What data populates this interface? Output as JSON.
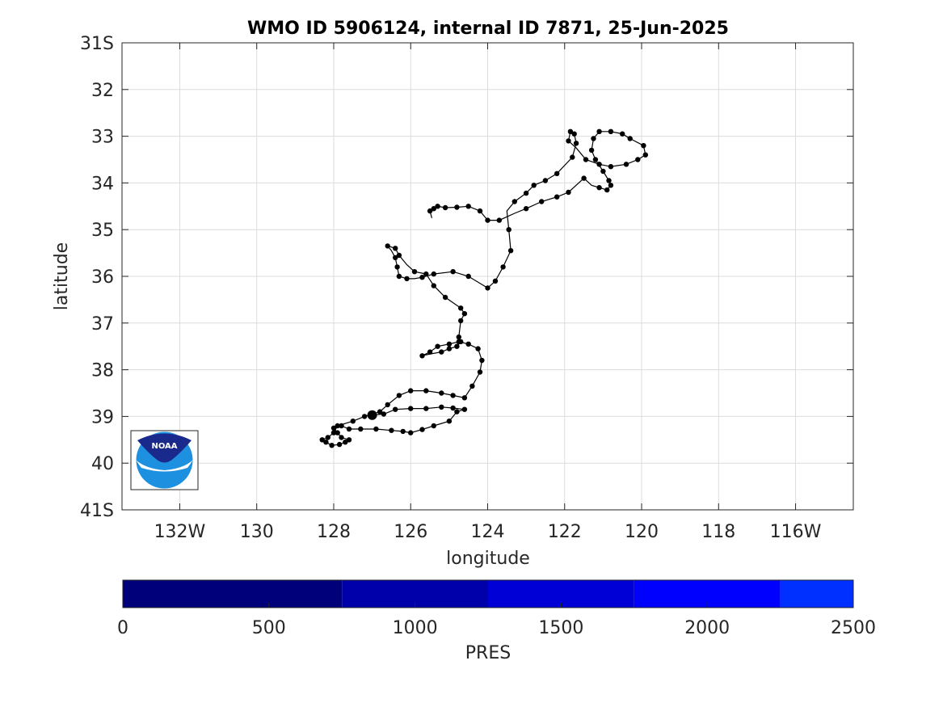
{
  "chart_data": {
    "type": "scatter",
    "title": "WMO ID 5906124, internal ID 7871, 25-Jun-2025",
    "xlabel": "longitude",
    "ylabel": "latitude",
    "xlim": [
      -133.5,
      -114.5
    ],
    "ylim": [
      31,
      41
    ],
    "x_ticks": [
      {
        "value": -132,
        "label": "132W"
      },
      {
        "value": -130,
        "label": "130"
      },
      {
        "value": -128,
        "label": "128"
      },
      {
        "value": -126,
        "label": "126"
      },
      {
        "value": -124,
        "label": "124"
      },
      {
        "value": -122,
        "label": "122"
      },
      {
        "value": -120,
        "label": "120"
      },
      {
        "value": -118,
        "label": "118"
      },
      {
        "value": -116,
        "label": "116W"
      }
    ],
    "y_ticks": [
      {
        "value": 31,
        "label": "31S"
      },
      {
        "value": 32,
        "label": "32"
      },
      {
        "value": 33,
        "label": "33"
      },
      {
        "value": 34,
        "label": "34"
      },
      {
        "value": 35,
        "label": "35"
      },
      {
        "value": 36,
        "label": "36"
      },
      {
        "value": 37,
        "label": "37"
      },
      {
        "value": 38,
        "label": "38"
      },
      {
        "value": 39,
        "label": "39"
      },
      {
        "value": 40,
        "label": "40"
      },
      {
        "value": 41,
        "label": "41S"
      }
    ],
    "grid": true,
    "track": [
      [
        -127.0,
        38.97
      ],
      [
        -126.7,
        38.95
      ],
      [
        -126.4,
        38.85
      ],
      [
        -126.0,
        38.83
      ],
      [
        -125.6,
        38.83
      ],
      [
        -125.2,
        38.8
      ],
      [
        -124.9,
        38.82
      ],
      [
        -124.6,
        38.85
      ],
      [
        -124.8,
        38.9
      ],
      [
        -125.0,
        39.1
      ],
      [
        -125.4,
        39.2
      ],
      [
        -125.7,
        39.28
      ],
      [
        -126.0,
        39.35
      ],
      [
        -126.2,
        39.32
      ],
      [
        -126.5,
        39.3
      ],
      [
        -126.9,
        39.27
      ],
      [
        -127.3,
        39.27
      ],
      [
        -127.6,
        39.27
      ],
      [
        -127.8,
        39.2
      ],
      [
        -128.0,
        39.25
      ],
      [
        -127.9,
        39.35
      ],
      [
        -127.8,
        39.45
      ],
      [
        -127.6,
        39.5
      ],
      [
        -127.7,
        39.55
      ],
      [
        -127.85,
        39.6
      ],
      [
        -128.05,
        39.62
      ],
      [
        -128.2,
        39.55
      ],
      [
        -128.3,
        39.5
      ],
      [
        -128.15,
        39.45
      ],
      [
        -128.0,
        39.35
      ],
      [
        -127.9,
        39.2
      ],
      [
        -127.5,
        39.1
      ],
      [
        -127.2,
        39.0
      ],
      [
        -126.8,
        38.9
      ],
      [
        -126.6,
        38.75
      ],
      [
        -126.3,
        38.55
      ],
      [
        -126.0,
        38.45
      ],
      [
        -125.6,
        38.45
      ],
      [
        -125.2,
        38.5
      ],
      [
        -124.9,
        38.55
      ],
      [
        -124.6,
        38.6
      ],
      [
        -124.4,
        38.35
      ],
      [
        -124.2,
        38.05
      ],
      [
        -124.15,
        37.8
      ],
      [
        -124.25,
        37.55
      ],
      [
        -124.5,
        37.45
      ],
      [
        -124.75,
        37.4
      ],
      [
        -125.0,
        37.45
      ],
      [
        -125.3,
        37.5
      ],
      [
        -125.5,
        37.62
      ],
      [
        -125.7,
        37.7
      ],
      [
        -125.6,
        37.68
      ],
      [
        -125.2,
        37.62
      ],
      [
        -125.0,
        37.55
      ],
      [
        -124.8,
        37.5
      ],
      [
        -124.7,
        37.4
      ],
      [
        -124.75,
        37.3
      ],
      [
        -124.7,
        36.95
      ],
      [
        -124.6,
        36.8
      ],
      [
        -124.7,
        36.68
      ],
      [
        -125.1,
        36.45
      ],
      [
        -125.4,
        36.2
      ],
      [
        -125.6,
        35.95
      ],
      [
        -125.9,
        35.9
      ],
      [
        -126.1,
        35.75
      ],
      [
        -126.3,
        35.55
      ],
      [
        -126.4,
        35.4
      ],
      [
        -126.6,
        35.35
      ],
      [
        -126.5,
        35.45
      ],
      [
        -126.4,
        35.6
      ],
      [
        -126.35,
        35.8
      ],
      [
        -126.3,
        36.0
      ],
      [
        -126.1,
        36.05
      ],
      [
        -125.9,
        36.05
      ],
      [
        -125.7,
        36.02
      ],
      [
        -125.4,
        35.95
      ],
      [
        -124.9,
        35.9
      ],
      [
        -124.5,
        36.0
      ],
      [
        -124.0,
        36.25
      ],
      [
        -123.8,
        36.1
      ],
      [
        -123.6,
        35.8
      ],
      [
        -123.4,
        35.45
      ],
      [
        -123.45,
        35.0
      ],
      [
        -123.5,
        34.6
      ],
      [
        -123.3,
        34.4
      ],
      [
        -123.0,
        34.22
      ],
      [
        -122.8,
        34.05
      ],
      [
        -122.5,
        33.95
      ],
      [
        -122.2,
        33.8
      ],
      [
        -121.8,
        33.45
      ],
      [
        -121.7,
        33.15
      ],
      [
        -121.75,
        32.95
      ],
      [
        -121.85,
        32.9
      ],
      [
        -121.9,
        33.1
      ],
      [
        -121.7,
        33.25
      ],
      [
        -121.45,
        33.5
      ],
      [
        -121.1,
        33.6
      ],
      [
        -120.8,
        33.65
      ],
      [
        -120.4,
        33.6
      ],
      [
        -120.1,
        33.5
      ],
      [
        -119.9,
        33.4
      ],
      [
        -119.95,
        33.2
      ],
      [
        -120.3,
        33.05
      ],
      [
        -120.5,
        32.95
      ],
      [
        -120.8,
        32.9
      ],
      [
        -121.1,
        32.9
      ],
      [
        -121.25,
        33.05
      ],
      [
        -121.3,
        33.3
      ],
      [
        -121.2,
        33.5
      ],
      [
        -121.0,
        33.75
      ],
      [
        -120.85,
        33.95
      ],
      [
        -120.8,
        34.05
      ],
      [
        -120.9,
        34.15
      ],
      [
        -121.1,
        34.1
      ],
      [
        -121.3,
        34.05
      ],
      [
        -121.5,
        33.9
      ],
      [
        -121.9,
        34.2
      ],
      [
        -122.2,
        34.3
      ],
      [
        -122.6,
        34.4
      ],
      [
        -123.0,
        34.55
      ],
      [
        -123.3,
        34.65
      ],
      [
        -123.7,
        34.8
      ],
      [
        -124.0,
        34.8
      ],
      [
        -124.2,
        34.6
      ],
      [
        -124.5,
        34.5
      ],
      [
        -124.8,
        34.52
      ],
      [
        -125.1,
        34.53
      ],
      [
        -125.3,
        34.5
      ],
      [
        -125.4,
        34.55
      ],
      [
        -125.5,
        34.6
      ],
      [
        -125.45,
        34.75
      ]
    ],
    "points": [
      [
        -127.0,
        38.97
      ],
      [
        -126.7,
        38.95
      ],
      [
        -126.4,
        38.85
      ],
      [
        -126.0,
        38.83
      ],
      [
        -125.6,
        38.83
      ],
      [
        -125.2,
        38.8
      ],
      [
        -124.9,
        38.82
      ],
      [
        -124.6,
        38.85
      ],
      [
        -124.8,
        38.9
      ],
      [
        -125.0,
        39.1
      ],
      [
        -125.4,
        39.2
      ],
      [
        -125.7,
        39.28
      ],
      [
        -126.0,
        39.35
      ],
      [
        -126.2,
        39.32
      ],
      [
        -126.5,
        39.3
      ],
      [
        -126.9,
        39.27
      ],
      [
        -127.3,
        39.27
      ],
      [
        -127.6,
        39.27
      ],
      [
        -127.8,
        39.2
      ],
      [
        -128.0,
        39.25
      ],
      [
        -127.9,
        39.35
      ],
      [
        -127.8,
        39.45
      ],
      [
        -127.6,
        39.5
      ],
      [
        -127.7,
        39.55
      ],
      [
        -127.85,
        39.6
      ],
      [
        -128.05,
        39.62
      ],
      [
        -128.2,
        39.55
      ],
      [
        -128.3,
        39.5
      ],
      [
        -128.15,
        39.45
      ],
      [
        -128.0,
        39.35
      ],
      [
        -127.9,
        39.2
      ],
      [
        -127.5,
        39.1
      ],
      [
        -127.2,
        39.0
      ],
      [
        -126.8,
        38.9
      ],
      [
        -126.6,
        38.75
      ],
      [
        -126.3,
        38.55
      ],
      [
        -126.0,
        38.45
      ],
      [
        -125.6,
        38.45
      ],
      [
        -125.2,
        38.5
      ],
      [
        -124.9,
        38.55
      ],
      [
        -124.6,
        38.6
      ],
      [
        -124.4,
        38.35
      ],
      [
        -124.2,
        38.05
      ],
      [
        -124.15,
        37.8
      ],
      [
        -124.25,
        37.55
      ],
      [
        -124.5,
        37.45
      ],
      [
        -124.75,
        37.4
      ],
      [
        -125.0,
        37.45
      ],
      [
        -125.3,
        37.5
      ],
      [
        -125.5,
        37.62
      ],
      [
        -125.7,
        37.7
      ],
      [
        -125.2,
        37.62
      ],
      [
        -125.0,
        37.55
      ],
      [
        -124.8,
        37.5
      ],
      [
        -124.7,
        37.4
      ],
      [
        -124.75,
        37.3
      ],
      [
        -124.7,
        36.95
      ],
      [
        -124.6,
        36.8
      ],
      [
        -124.7,
        36.68
      ],
      [
        -125.1,
        36.45
      ],
      [
        -125.4,
        36.2
      ],
      [
        -125.6,
        35.95
      ],
      [
        -125.9,
        35.9
      ],
      [
        -126.3,
        35.55
      ],
      [
        -126.4,
        35.4
      ],
      [
        -126.6,
        35.35
      ],
      [
        -126.4,
        35.6
      ],
      [
        -126.35,
        35.8
      ],
      [
        -126.3,
        36.0
      ],
      [
        -126.1,
        36.05
      ],
      [
        -125.7,
        36.02
      ],
      [
        -125.4,
        35.95
      ],
      [
        -124.9,
        35.9
      ],
      [
        -124.5,
        36.0
      ],
      [
        -124.0,
        36.25
      ],
      [
        -123.8,
        36.1
      ],
      [
        -123.6,
        35.8
      ],
      [
        -123.4,
        35.45
      ],
      [
        -123.45,
        35.0
      ],
      [
        -123.3,
        34.4
      ],
      [
        -123.0,
        34.22
      ],
      [
        -122.8,
        34.05
      ],
      [
        -122.5,
        33.95
      ],
      [
        -122.2,
        33.8
      ],
      [
        -121.8,
        33.45
      ],
      [
        -121.7,
        33.15
      ],
      [
        -121.75,
        32.95
      ],
      [
        -121.85,
        32.9
      ],
      [
        -121.9,
        33.1
      ],
      [
        -121.45,
        33.5
      ],
      [
        -121.1,
        33.6
      ],
      [
        -120.8,
        33.65
      ],
      [
        -120.4,
        33.6
      ],
      [
        -120.1,
        33.5
      ],
      [
        -119.9,
        33.4
      ],
      [
        -119.95,
        33.2
      ],
      [
        -120.3,
        33.05
      ],
      [
        -120.5,
        32.95
      ],
      [
        -120.8,
        32.9
      ],
      [
        -121.1,
        32.9
      ],
      [
        -121.25,
        33.05
      ],
      [
        -121.3,
        33.3
      ],
      [
        -121.2,
        33.5
      ],
      [
        -121.0,
        33.75
      ],
      [
        -120.85,
        33.95
      ],
      [
        -120.8,
        34.05
      ],
      [
        -120.9,
        34.15
      ],
      [
        -121.1,
        34.1
      ],
      [
        -121.5,
        33.9
      ],
      [
        -121.9,
        34.2
      ],
      [
        -122.2,
        34.3
      ],
      [
        -122.6,
        34.4
      ],
      [
        -123.0,
        34.55
      ],
      [
        -123.7,
        34.8
      ],
      [
        -124.0,
        34.8
      ],
      [
        -124.2,
        34.6
      ],
      [
        -124.5,
        34.5
      ],
      [
        -124.8,
        34.52
      ],
      [
        -125.1,
        34.53
      ],
      [
        -125.3,
        34.5
      ],
      [
        -125.4,
        34.55
      ],
      [
        -125.5,
        34.6
      ]
    ],
    "highlight_point": [
      -127.0,
      38.97
    ]
  },
  "colorbar": {
    "label": "PRES",
    "min": 0,
    "max": 2500,
    "ticks": [
      {
        "value": 0,
        "label": "0"
      },
      {
        "value": 500,
        "label": "500"
      },
      {
        "value": 1000,
        "label": "1000"
      },
      {
        "value": 1500,
        "label": "1500"
      },
      {
        "value": 2000,
        "label": "2000"
      },
      {
        "value": 2500,
        "label": "2500"
      }
    ],
    "segments": [
      {
        "from": 0,
        "to": 750,
        "color": "#00007a"
      },
      {
        "from": 750,
        "to": 1250,
        "color": "#0000aa"
      },
      {
        "from": 1250,
        "to": 1750,
        "color": "#0000d6"
      },
      {
        "from": 1750,
        "to": 2250,
        "color": "#0000ff"
      },
      {
        "from": 2250,
        "to": 2500,
        "color": "#0030ff"
      }
    ]
  },
  "logo": {
    "text": "NOAA",
    "colors": {
      "dark": "#1a2a8c",
      "light": "#1e90e0"
    }
  }
}
